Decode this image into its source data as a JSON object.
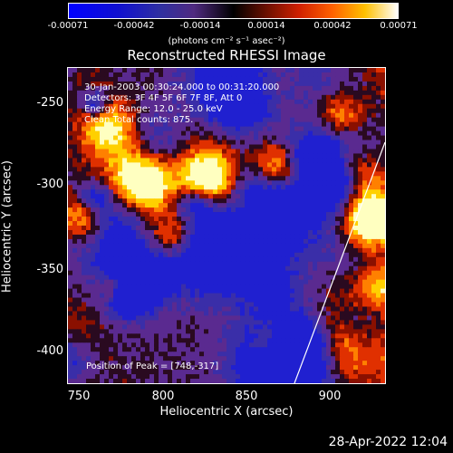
{
  "colorbar": {
    "ticks": [
      "-0.00071",
      "-0.00042",
      "-0.00014",
      "0.00014",
      "0.00042",
      "0.00071"
    ],
    "unit": "(photons cm⁻² s⁻¹ asec⁻²)"
  },
  "title": "Reconstructed RHESSI Image",
  "annotations": {
    "time": "30-Jan-2003 00:30:24.000 to 00:31:20.000",
    "detectors": "Detectors: 3F 4F 5F 6F 7F 8F, Att 0",
    "energy": "Energy Range: 12.0 - 25.0 keV",
    "clean": "Clean     Total counts: 875.",
    "peak": "Position of Peak = [748,-317]"
  },
  "axes": {
    "xlabel": "Heliocentric X (arcsec)",
    "ylabel": "Heliocentric Y (arcsec)",
    "xticks": [
      "750",
      "800",
      "850",
      "900"
    ],
    "yticks": [
      "-250",
      "-300",
      "-350",
      "-400"
    ]
  },
  "footer": {
    "date": "28-Apr-2022 12:04"
  },
  "colors": {
    "colormap": [
      "#0000ff",
      "#2020b0",
      "#503080",
      "#000000",
      "#802000",
      "#ff4000",
      "#ffd000",
      "#ffffff"
    ]
  }
}
